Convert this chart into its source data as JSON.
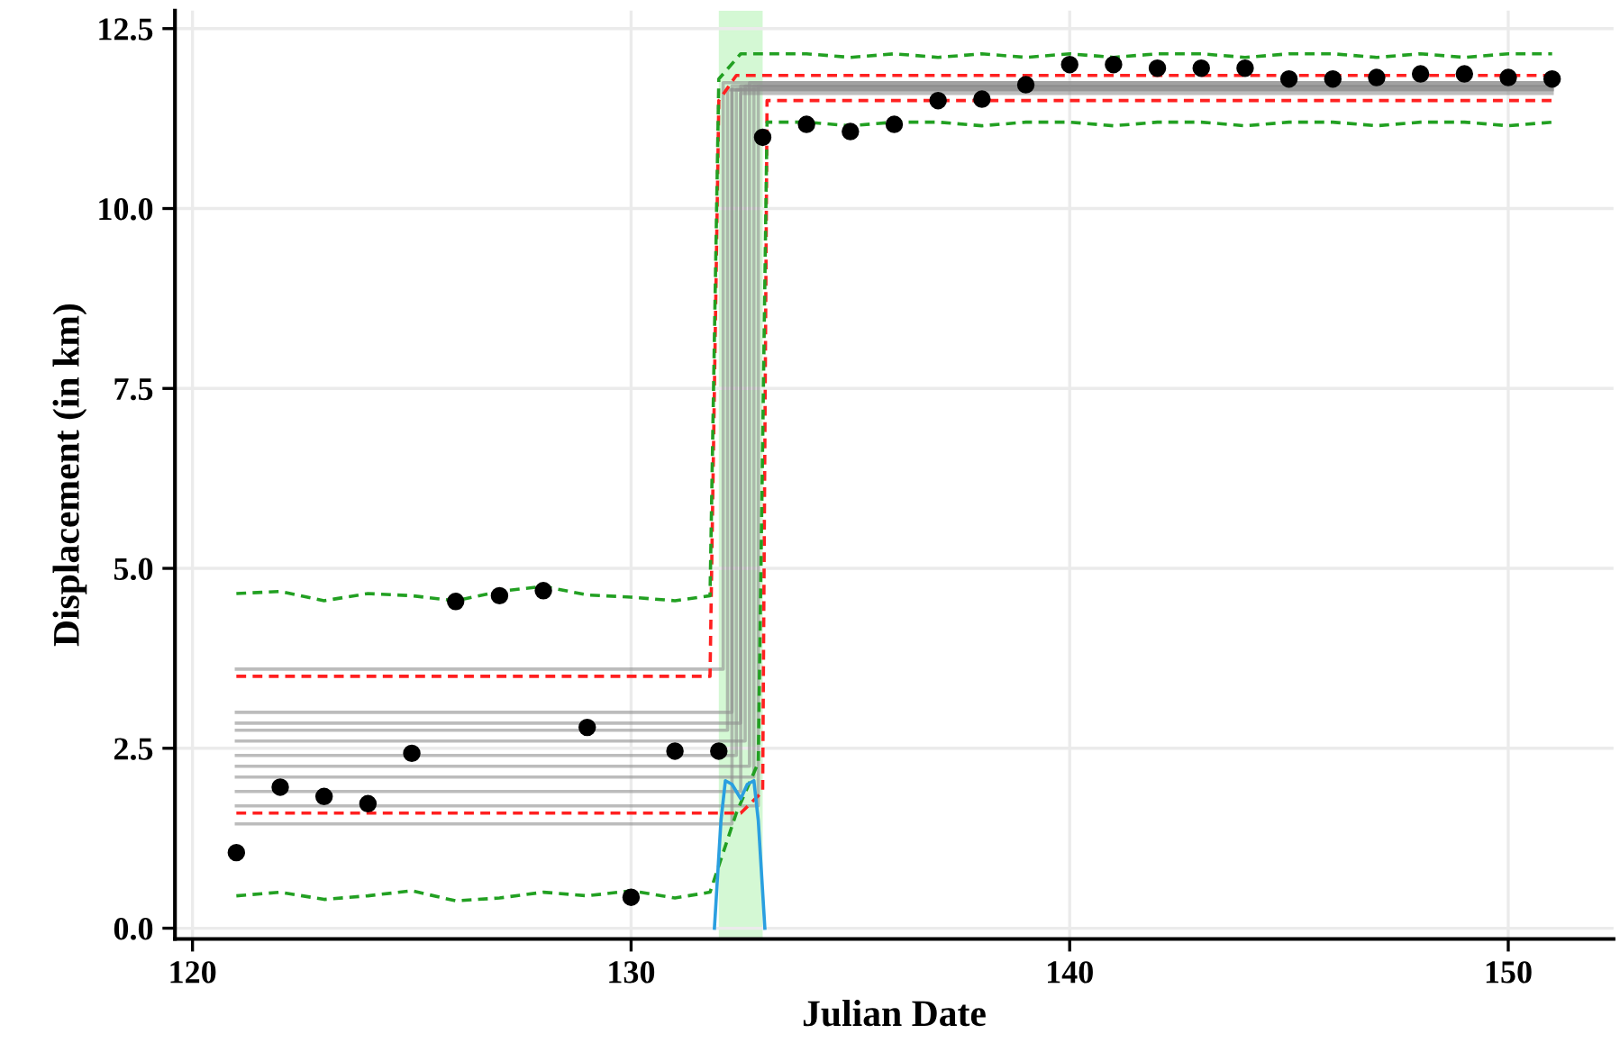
{
  "chart_data": {
    "type": "line",
    "xlabel": "Julian Date",
    "ylabel": "Displacement (in km)",
    "xlim": [
      119.6,
      152.4
    ],
    "ylim": [
      -0.15,
      12.75
    ],
    "xticks": [
      120,
      130,
      140,
      150
    ],
    "yticks": [
      {
        "value": 0,
        "label": "0.0"
      },
      {
        "value": 2.5,
        "label": "2.5"
      },
      {
        "value": 5,
        "label": "5.0"
      },
      {
        "value": 7.5,
        "label": "7.5"
      },
      {
        "value": 10,
        "label": "10.0"
      },
      {
        "value": 12.5,
        "label": "12.5"
      }
    ],
    "grid": true,
    "legend": false,
    "bands": [
      {
        "axis": "x",
        "from": 132,
        "to": 133,
        "color": "#d4f8d4"
      }
    ],
    "series": [
      {
        "color": "#909090",
        "x": [
          121,
          132.1,
          132.1,
          151
        ],
        "values": [
          3.6,
          3.6,
          11.75,
          11.75
        ]
      },
      {
        "color": "#909090",
        "x": [
          121,
          132.3,
          132.3,
          151
        ],
        "values": [
          3.0,
          3.0,
          11.7,
          11.7
        ]
      },
      {
        "color": "#909090",
        "x": [
          121,
          132.5,
          132.5,
          151
        ],
        "values": [
          2.85,
          2.85,
          11.7,
          11.7
        ]
      },
      {
        "color": "#909090",
        "x": [
          121,
          132.2,
          132.2,
          151
        ],
        "values": [
          2.75,
          2.75,
          11.65,
          11.65
        ]
      },
      {
        "color": "#909090",
        "x": [
          121,
          132.6,
          132.6,
          151
        ],
        "values": [
          2.6,
          2.6,
          11.7,
          11.7
        ]
      },
      {
        "color": "#909090",
        "x": [
          121,
          132.4,
          132.4,
          151
        ],
        "values": [
          2.4,
          2.4,
          11.65,
          11.65
        ]
      },
      {
        "color": "#909090",
        "x": [
          121,
          132.7,
          132.7,
          151
        ],
        "values": [
          2.25,
          2.25,
          11.75,
          11.75
        ]
      },
      {
        "color": "#909090",
        "x": [
          121,
          132.8,
          132.8,
          151
        ],
        "values": [
          2.1,
          2.1,
          11.7,
          11.7
        ]
      },
      {
        "color": "#909090",
        "x": [
          121,
          132.5,
          132.5,
          151
        ],
        "values": [
          1.9,
          1.9,
          11.6,
          11.6
        ]
      },
      {
        "color": "#909090",
        "x": [
          121,
          132.9,
          132.9,
          151
        ],
        "values": [
          1.7,
          1.7,
          11.7,
          11.7
        ]
      },
      {
        "color": "#909090",
        "x": [
          121,
          132.3,
          132.3,
          151
        ],
        "values": [
          1.45,
          1.45,
          11.65,
          11.65
        ]
      },
      {
        "color": "#ff2020",
        "line_style": "dashed",
        "x": [
          121,
          131.8,
          132.0,
          132.4,
          151
        ],
        "values": [
          3.5,
          3.5,
          11.5,
          11.85,
          11.85
        ]
      },
      {
        "color": "#ff2020",
        "line_style": "dashed",
        "x": [
          121,
          132.5,
          133.0,
          133.1,
          151
        ],
        "values": [
          1.6,
          1.6,
          1.9,
          11.5,
          11.5
        ]
      },
      {
        "color": "#22a022",
        "line_style": "dashed",
        "x": [
          121,
          122,
          123,
          124,
          125,
          126,
          127,
          128,
          129,
          130,
          131,
          131.8,
          132.0,
          132.5,
          133,
          134,
          135,
          136,
          137,
          138,
          139,
          140,
          141,
          142,
          143,
          144,
          145,
          146,
          147,
          148,
          149,
          150,
          151
        ],
        "values": [
          4.65,
          4.68,
          4.55,
          4.65,
          4.62,
          4.55,
          4.68,
          4.75,
          4.63,
          4.6,
          4.55,
          4.62,
          11.8,
          12.15,
          12.15,
          12.15,
          12.1,
          12.15,
          12.1,
          12.15,
          12.1,
          12.15,
          12.1,
          12.15,
          12.15,
          12.1,
          12.15,
          12.15,
          12.1,
          12.15,
          12.1,
          12.15,
          12.15
        ]
      },
      {
        "color": "#22a022",
        "line_style": "dashed",
        "x": [
          121,
          122,
          123,
          124,
          125,
          126,
          127,
          128,
          129,
          130,
          131,
          131.8,
          132.4,
          132.9,
          133.1,
          134,
          135,
          136,
          137,
          138,
          139,
          140,
          141,
          142,
          143,
          144,
          145,
          146,
          147,
          148,
          149,
          150,
          151
        ],
        "values": [
          0.45,
          0.5,
          0.4,
          0.45,
          0.52,
          0.38,
          0.42,
          0.5,
          0.45,
          0.52,
          0.42,
          0.5,
          1.6,
          2.3,
          11.2,
          11.2,
          11.15,
          11.2,
          11.2,
          11.15,
          11.2,
          11.2,
          11.15,
          11.2,
          11.2,
          11.15,
          11.2,
          11.2,
          11.15,
          11.2,
          11.2,
          11.15,
          11.2
        ]
      },
      {
        "color": "#2a9fe0",
        "x": [
          131.9,
          132.05,
          132.15,
          132.3,
          132.5,
          132.65,
          132.8,
          132.9,
          133.05
        ],
        "values": [
          0,
          1.5,
          2.05,
          2.0,
          1.8,
          2.0,
          2.05,
          1.5,
          0
        ]
      },
      {
        "type": "scatter",
        "color": "#000000",
        "marker": "circle",
        "x": [
          121,
          122,
          123,
          124,
          125,
          126,
          127,
          128,
          129,
          130,
          131,
          132,
          133,
          134,
          135,
          136,
          137,
          138,
          139,
          140,
          141,
          142,
          143,
          144,
          145,
          146,
          147,
          148,
          149,
          150,
          151
        ],
        "values": [
          1.05,
          1.96,
          1.83,
          1.73,
          2.43,
          4.54,
          4.62,
          4.69,
          2.79,
          0.43,
          2.46,
          2.46,
          10.99,
          11.17,
          11.07,
          11.17,
          11.5,
          11.52,
          11.72,
          12.0,
          12.0,
          11.95,
          11.95,
          11.95,
          11.8,
          11.8,
          11.82,
          11.87,
          11.87,
          11.82,
          11.8
        ]
      }
    ]
  }
}
